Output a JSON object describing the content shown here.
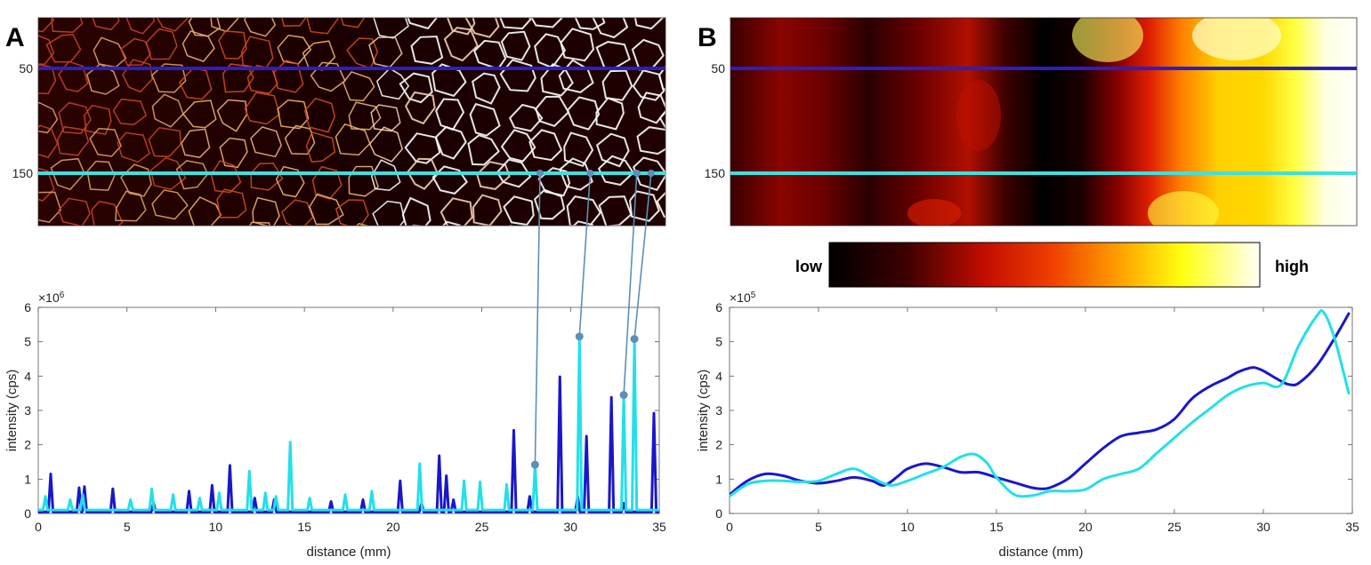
{
  "panels": {
    "a": {
      "letter": "A"
    },
    "b": {
      "letter": "B"
    }
  },
  "image_rows": [
    {
      "label": "50",
      "color": "#2b1fbf"
    },
    {
      "label": "150",
      "color": "#3fe0e0"
    }
  ],
  "colorbar": {
    "low_label": "low",
    "high_label": "high"
  },
  "chart_data": [
    {
      "type": "line",
      "panel": "A",
      "xlabel": "distance (mm)",
      "ylabel": "intensity (cps)",
      "exponent_label": "×10",
      "exponent_power": "6",
      "xlim": [
        0,
        35
      ],
      "ylim": [
        0,
        6
      ],
      "xticks": [
        0,
        5,
        10,
        15,
        20,
        25,
        30,
        35
      ],
      "yticks": [
        0,
        1,
        2,
        3,
        4,
        5,
        6
      ],
      "series": [
        {
          "row": "50",
          "color": "#1a17c9",
          "baseline": 0.05,
          "peaks": [
            [
              0.7,
              1.15
            ],
            [
              2.3,
              0.75
            ],
            [
              2.6,
              0.78
            ],
            [
              4.2,
              0.72
            ],
            [
              6.5,
              0.3
            ],
            [
              8.5,
              0.65
            ],
            [
              9.8,
              0.82
            ],
            [
              10.8,
              1.4
            ],
            [
              12.2,
              0.45
            ],
            [
              13.3,
              0.4
            ],
            [
              16.5,
              0.35
            ],
            [
              18.3,
              0.4
            ],
            [
              20.4,
              0.95
            ],
            [
              21.6,
              0.3
            ],
            [
              22.6,
              1.68
            ],
            [
              23.0,
              1.1
            ],
            [
              23.4,
              0.4
            ],
            [
              26.8,
              2.42
            ],
            [
              27.7,
              0.5
            ],
            [
              29.4,
              3.98
            ],
            [
              30.4,
              0.5
            ],
            [
              30.9,
              2.25
            ],
            [
              32.3,
              3.38
            ],
            [
              33.0,
              0.3
            ],
            [
              34.7,
              2.92
            ]
          ]
        },
        {
          "row": "150",
          "color": "#22e0e8",
          "baseline": 0.1,
          "peaks": [
            [
              0.4,
              0.5
            ],
            [
              1.8,
              0.4
            ],
            [
              2.5,
              0.55
            ],
            [
              5.2,
              0.4
            ],
            [
              6.4,
              0.72
            ],
            [
              7.6,
              0.55
            ],
            [
              9.1,
              0.45
            ],
            [
              10.2,
              0.6
            ],
            [
              11.9,
              1.23
            ],
            [
              12.8,
              0.6
            ],
            [
              13.4,
              0.5
            ],
            [
              14.2,
              2.08
            ],
            [
              15.3,
              0.45
            ],
            [
              17.3,
              0.55
            ],
            [
              18.8,
              0.65
            ],
            [
              21.5,
              1.45
            ],
            [
              24.0,
              0.95
            ],
            [
              24.9,
              0.92
            ],
            [
              26.4,
              0.85
            ],
            [
              28.0,
              1.42
            ],
            [
              30.5,
              5.15
            ],
            [
              33.0,
              3.45
            ],
            [
              33.6,
              5.08
            ]
          ]
        }
      ],
      "markers": [
        {
          "x": 28.0,
          "y": 1.42,
          "image_col": 28.0
        },
        {
          "x": 30.5,
          "y": 5.15,
          "image_col": 30.8
        },
        {
          "x": 33.0,
          "y": 3.45,
          "image_col": 33.4
        },
        {
          "x": 33.6,
          "y": 5.08,
          "image_col": 34.2
        }
      ]
    },
    {
      "type": "line",
      "panel": "B",
      "xlabel": "distance (mm)",
      "ylabel": "intensity (cps)",
      "exponent_label": "×10",
      "exponent_power": "5",
      "xlim": [
        0,
        35
      ],
      "ylim": [
        0,
        6
      ],
      "xticks": [
        0,
        5,
        10,
        15,
        20,
        25,
        30,
        35
      ],
      "yticks": [
        0,
        1,
        2,
        3,
        4,
        5,
        6
      ],
      "series": [
        {
          "row": "50",
          "color": "#1a17c9",
          "x": [
            0,
            1,
            2,
            3,
            4,
            5,
            6,
            7,
            8,
            8.7,
            9.5,
            10,
            11,
            12,
            13,
            14,
            15,
            16,
            17,
            17.5,
            18,
            19,
            20,
            21,
            22,
            23,
            24,
            25,
            26,
            27,
            28,
            28.5,
            29,
            29.5,
            30,
            31,
            31.5,
            32,
            33,
            34,
            34.8
          ],
          "y": [
            0.55,
            0.95,
            1.15,
            1.1,
            0.95,
            0.88,
            0.95,
            1.05,
            0.95,
            0.82,
            1.1,
            1.3,
            1.45,
            1.35,
            1.2,
            1.2,
            1.05,
            0.9,
            0.75,
            0.72,
            0.75,
            1.0,
            1.45,
            1.9,
            2.25,
            2.35,
            2.45,
            2.75,
            3.35,
            3.7,
            3.95,
            4.1,
            4.2,
            4.25,
            4.15,
            3.85,
            3.75,
            3.8,
            4.3,
            5.1,
            5.82
          ]
        },
        {
          "row": "150",
          "color": "#22e0e8",
          "x": [
            0,
            1,
            2,
            3,
            4,
            5,
            6,
            7,
            8,
            9,
            10,
            11,
            12,
            13,
            13.8,
            14.5,
            15,
            16,
            17,
            18,
            19,
            20,
            21,
            22,
            23,
            24,
            25,
            26,
            27,
            28,
            29,
            30,
            31,
            32,
            33,
            33.4,
            34,
            34.8
          ],
          "y": [
            0.5,
            0.85,
            0.95,
            0.95,
            0.92,
            0.95,
            1.15,
            1.3,
            1.05,
            0.82,
            0.95,
            1.15,
            1.35,
            1.65,
            1.72,
            1.45,
            1.05,
            0.55,
            0.52,
            0.65,
            0.65,
            0.7,
            1.0,
            1.15,
            1.3,
            1.75,
            2.2,
            2.65,
            3.05,
            3.45,
            3.7,
            3.8,
            3.75,
            4.9,
            5.75,
            5.85,
            5.1,
            3.5
          ]
        }
      ]
    }
  ]
}
